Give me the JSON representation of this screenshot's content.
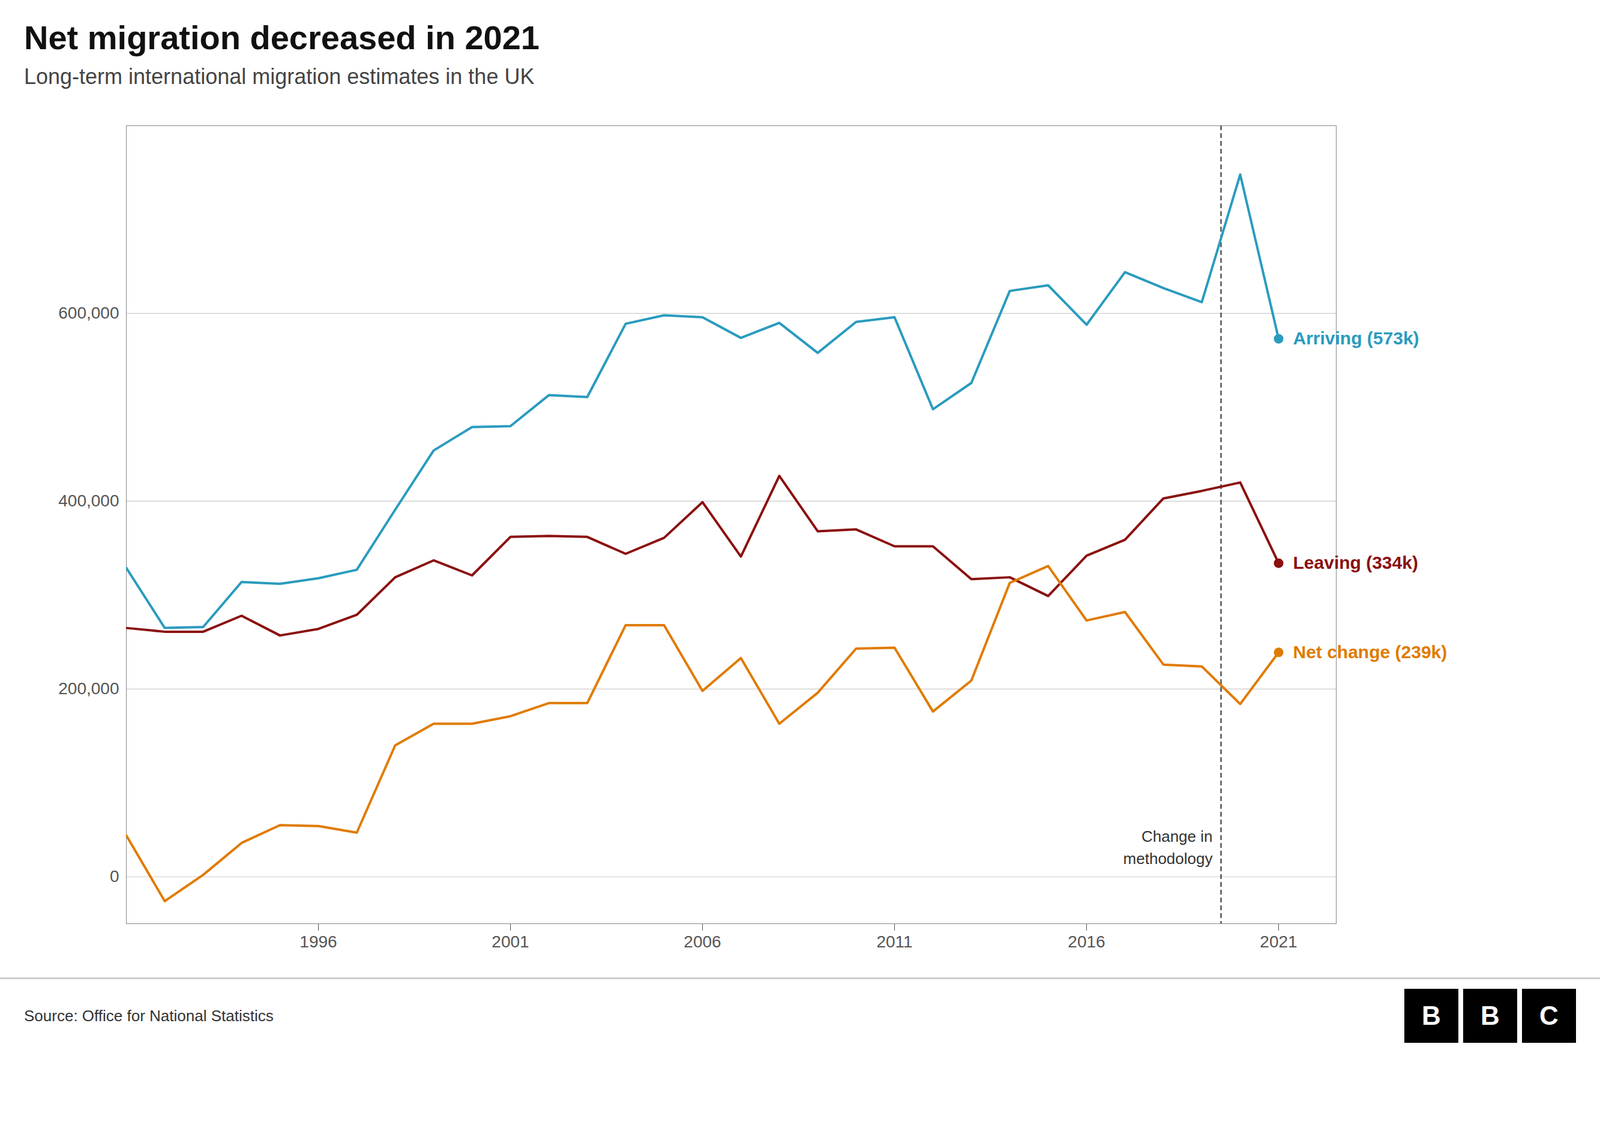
{
  "chart_data": {
    "type": "line",
    "title": "Net migration decreased in 2021",
    "subtitle": "Long-term international migration estimates in the UK",
    "source": "Source: Office for National Statistics",
    "logo": "BBC",
    "x": [
      1991,
      1992,
      1993,
      1994,
      1995,
      1996,
      1997,
      1998,
      1999,
      2000,
      2001,
      2002,
      2003,
      2004,
      2005,
      2006,
      2007,
      2008,
      2009,
      2010,
      2011,
      2012,
      2013,
      2014,
      2015,
      2016,
      2017,
      2018,
      2019,
      2020,
      2021
    ],
    "series": [
      {
        "name": "Arriving (573k)",
        "color": "#2a9bbf",
        "values": [
          329000,
          265000,
          266000,
          314000,
          312000,
          318000,
          327000,
          391000,
          454000,
          479000,
          480000,
          513000,
          511000,
          589000,
          598000,
          596000,
          574000,
          590000,
          558000,
          591000,
          596000,
          498000,
          526000,
          624000,
          630000,
          588000,
          644000,
          627000,
          612000,
          748000,
          573000
        ]
      },
      {
        "name": "Leaving (334k)",
        "color": "#8b1010",
        "values": [
          265000,
          261000,
          261000,
          278000,
          257000,
          264000,
          279000,
          319000,
          337000,
          321000,
          362000,
          363000,
          362000,
          344000,
          361000,
          399000,
          341000,
          427000,
          368000,
          370000,
          352000,
          352000,
          317000,
          319000,
          299000,
          342000,
          359000,
          403000,
          411000,
          420000,
          334000
        ]
      },
      {
        "name": "Net change (239k)",
        "color": "#e07b00",
        "values": [
          44000,
          -26000,
          2000,
          36000,
          55000,
          54000,
          47000,
          140000,
          163000,
          163000,
          171000,
          185000,
          185000,
          268000,
          268000,
          198000,
          233000,
          163000,
          196000,
          243000,
          244000,
          176000,
          209000,
          313000,
          331000,
          273000,
          282000,
          226000,
          224000,
          184000,
          239000
        ]
      }
    ],
    "xlim": [
      1991,
      2022.5
    ],
    "xticks": [
      1996,
      2001,
      2006,
      2011,
      2016,
      2021
    ],
    "ylim": [
      -50000,
      800000
    ],
    "yticks": [
      0,
      {
        "value": 200000,
        "label": "200,000"
      },
      {
        "value": 400000,
        "label": "400,000"
      },
      {
        "value": 600000,
        "label": "600,000"
      }
    ],
    "grid": true,
    "annotations": [
      {
        "x": 2019.5,
        "text": "Change in\nmethodology"
      }
    ]
  }
}
